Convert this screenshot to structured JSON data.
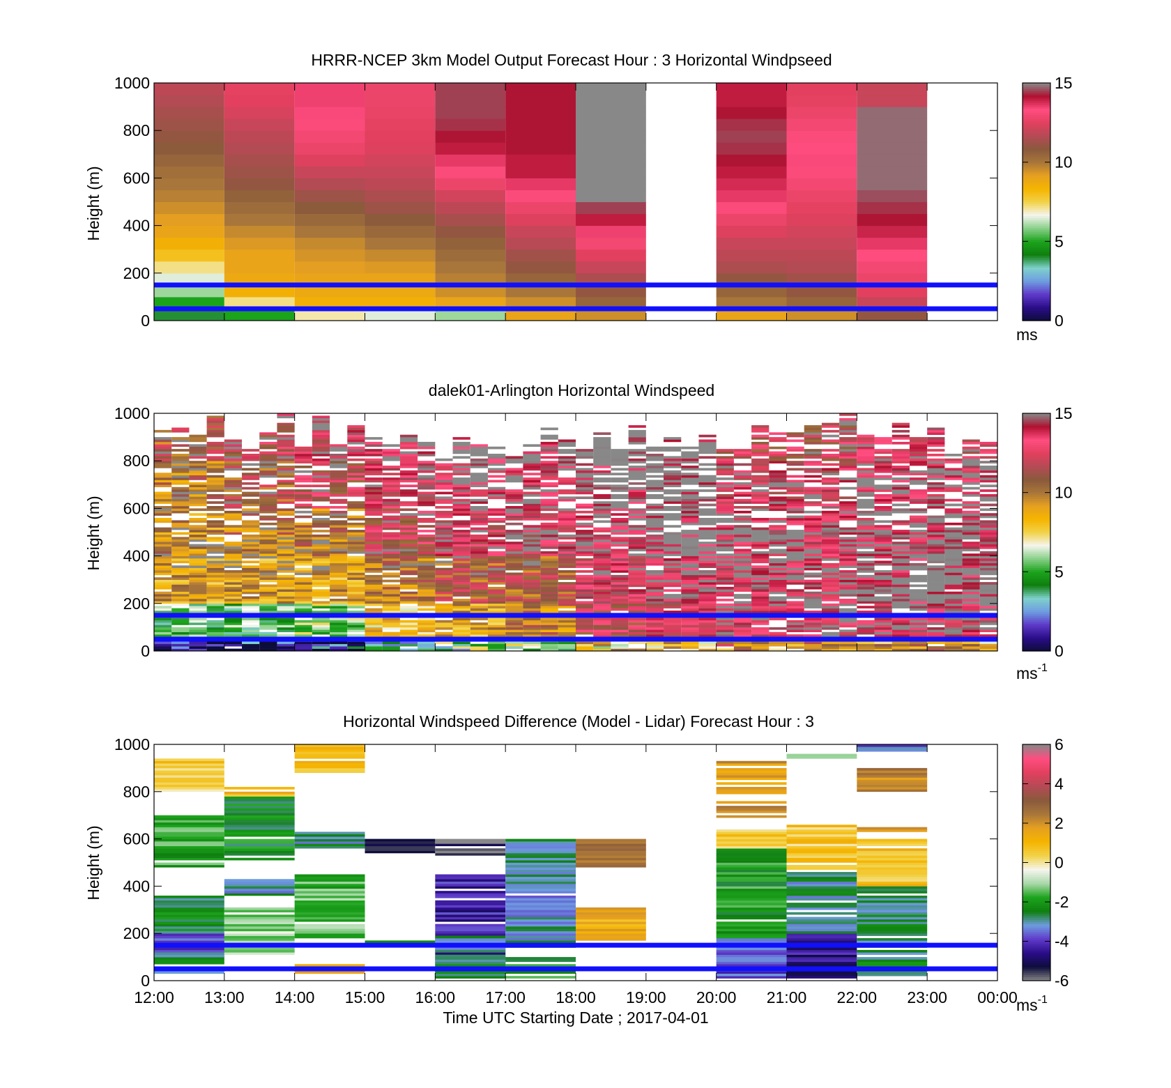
{
  "figure": {
    "xlabel": "Time UTC  Starting Date ; 2017-04-01"
  },
  "chart_data": [
    {
      "type": "heatmap",
      "title": "HRRR-NCEP 3km Model Output   Forecast Hour : 3 Horizontal Windpseed",
      "ylabel": "Height (m)",
      "ylim": [
        0,
        1000
      ],
      "yticks": [
        "0",
        "200",
        "400",
        "600",
        "800",
        "1000"
      ],
      "xticks": [
        "12:00",
        "13:00",
        "14:00",
        "15:00",
        "16:00",
        "17:00",
        "18:00",
        "19:00",
        "20:00",
        "21:00",
        "22:00",
        "23:00",
        "00:00"
      ],
      "show_xtick_labels": false,
      "colorbar": {
        "ticks": [
          "0",
          "5",
          "10",
          "15"
        ],
        "min": 0,
        "max": 15,
        "unit": "ms",
        "unit_sup": ""
      },
      "reference_lines_m": [
        50,
        150
      ],
      "row_height_m": 50,
      "columns": [
        {
          "hour": 12,
          "top": 1000,
          "values": [
            4,
            5,
            6,
            6.5,
            7.2,
            8,
            8.5,
            9,
            9.2,
            9.5,
            9.8,
            10,
            10.2,
            10.5,
            10.8,
            11,
            11.2,
            11.4,
            11.6,
            11.8
          ]
        },
        {
          "hour": 13,
          "top": 1000,
          "values": [
            5,
            7.2,
            8.5,
            8.8,
            9,
            9,
            9.3,
            9.6,
            10,
            10.3,
            10.6,
            11,
            11.2,
            11.4,
            11.6,
            11.8,
            12,
            12.3,
            12.5,
            12.6
          ]
        },
        {
          "hour": 14,
          "top": 1000,
          "values": [
            7,
            8.5,
            8.8,
            9,
            9.2,
            9.4,
            9.6,
            10,
            10.4,
            10.8,
            11.2,
            11.6,
            12,
            12.4,
            12.8,
            13,
            13.2,
            13.4,
            13.5,
            13.5
          ]
        },
        {
          "hour": 15,
          "top": 1000,
          "values": [
            6.5,
            8.5,
            8.8,
            9,
            9.3,
            9.6,
            10,
            10.4,
            10.8,
            11.2,
            11.5,
            11.8,
            12,
            12.2,
            12.4,
            12.5,
            12.6,
            12.7,
            12.8,
            12.8
          ]
        },
        {
          "hour": 16,
          "top": 1000,
          "values": [
            6,
            9,
            9.5,
            9.8,
            10,
            10.3,
            10.6,
            11,
            11.4,
            11.8,
            12.2,
            12.8,
            13.2,
            13.6,
            14,
            14.2,
            14.4,
            14.5,
            14.5,
            14.5
          ]
        },
        {
          "hour": 17,
          "top": 1000,
          "values": [
            9,
            9.5,
            10,
            10.5,
            11,
            11.3,
            11.7,
            12,
            12.4,
            12.8,
            13.2,
            13.6,
            14,
            14,
            14.2,
            14.2,
            14.2,
            14.2,
            14.2,
            14.2
          ]
        },
        {
          "hour": 18,
          "top": 1000,
          "values": [
            9.5,
            10.5,
            11,
            11.5,
            12,
            12.5,
            13,
            13.5,
            14,
            14.5,
            15,
            15,
            15.5,
            15.5,
            15.5,
            15.5,
            15.5,
            15.5,
            15.5,
            15.5
          ]
        },
        {
          "hour": 19,
          "top": 0,
          "values": []
        },
        {
          "hour": 20,
          "top": 1000,
          "values": [
            9,
            10,
            10.5,
            11,
            11.5,
            11.8,
            12,
            12.4,
            12.8,
            13.2,
            13.6,
            13.8,
            14,
            14.2,
            14.4,
            14.5,
            14.4,
            14.2,
            14,
            14
          ]
        },
        {
          "hour": 21,
          "top": 1000,
          "values": [
            9.5,
            10.5,
            11,
            11.3,
            11.6,
            11.8,
            12,
            12.2,
            12.4,
            12.6,
            12.8,
            13,
            13.2,
            13.4,
            13.3,
            13.2,
            13,
            12.8,
            12.6,
            12.5
          ]
        },
        {
          "hour": 22,
          "top": 1000,
          "values": [
            11,
            12,
            12.5,
            12.8,
            13,
            13.3,
            13.6,
            13.9,
            14.2,
            14.4,
            14.6,
            14.8,
            14.8,
            14.8,
            14.8,
            14.8,
            14.8,
            14.8,
            12,
            12
          ]
        },
        {
          "hour": 23,
          "top": 0,
          "values": []
        }
      ]
    },
    {
      "type": "heatmap",
      "title": "dalek01-Arlington  Horizontal Windspeed",
      "ylabel": "Height (m)",
      "ylim": [
        0,
        1000
      ],
      "yticks": [
        "0",
        "200",
        "400",
        "600",
        "800",
        "1000"
      ],
      "xticks": [
        "12:00",
        "13:00",
        "14:00",
        "15:00",
        "16:00",
        "17:00",
        "18:00",
        "19:00",
        "20:00",
        "21:00",
        "22:00",
        "23:00",
        "00:00"
      ],
      "show_xtick_labels": false,
      "colorbar": {
        "ticks": [
          "0",
          "5",
          "10",
          "15"
        ],
        "min": 0,
        "max": 15,
        "unit": "ms",
        "unit_sup": "-1"
      },
      "reference_lines_m": [
        50,
        150
      ],
      "row_height_m": 10,
      "noisy_profile": true,
      "profile_blocks": [
        {
          "start": 12.0,
          "end": 13.0,
          "means": [
            5,
            9,
            9.5,
            10,
            11,
            12
          ]
        },
        {
          "start": 13.0,
          "end": 14.0,
          "means": [
            5,
            9,
            10,
            11,
            12,
            12.5
          ]
        },
        {
          "start": 14.0,
          "end": 15.0,
          "means": [
            6,
            9,
            10,
            12,
            13,
            13
          ]
        },
        {
          "start": 15.0,
          "end": 16.0,
          "means": [
            8,
            10,
            12,
            13,
            14,
            14
          ]
        },
        {
          "start": 16.0,
          "end": 17.0,
          "means": [
            9,
            11,
            13,
            14,
            15,
            15
          ]
        },
        {
          "start": 17.0,
          "end": 18.0,
          "means": [
            10,
            11,
            13,
            14,
            15,
            15
          ]
        },
        {
          "start": 18.0,
          "end": 19.0,
          "means": [
            12,
            13,
            14,
            15,
            15.5,
            15.5
          ]
        },
        {
          "start": 19.0,
          "end": 20.0,
          "means": [
            13,
            14,
            15,
            15.5,
            15.5,
            15
          ]
        },
        {
          "start": 20.0,
          "end": 21.0,
          "means": [
            14,
            14,
            14,
            13,
            12,
            12
          ]
        },
        {
          "start": 21.0,
          "end": 22.0,
          "means": [
            14,
            14,
            14,
            13,
            12,
            12
          ]
        },
        {
          "start": 22.0,
          "end": 23.0,
          "means": [
            14,
            15,
            14,
            14,
            13,
            12
          ]
        },
        {
          "start": 23.0,
          "end": 24.0,
          "means": [
            14,
            15,
            15,
            14,
            13,
            12
          ]
        }
      ]
    },
    {
      "type": "heatmap",
      "title": "Horizontal Windspeed Difference (Model - Lidar) Forecast Hour : 3",
      "ylabel": "Height (m)",
      "ylim": [
        0,
        1000
      ],
      "yticks": [
        "0",
        "200",
        "400",
        "600",
        "800",
        "1000"
      ],
      "xticks": [
        "12:00",
        "13:00",
        "14:00",
        "15:00",
        "16:00",
        "17:00",
        "18:00",
        "19:00",
        "20:00",
        "21:00",
        "22:00",
        "23:00",
        "00:00"
      ],
      "show_xtick_labels": true,
      "colorbar": {
        "ticks": [
          "-6",
          "-4",
          "-2",
          "0",
          "2",
          "4",
          "6"
        ],
        "min": -6,
        "max": 6,
        "unit": "ms",
        "unit_sup": "-1"
      },
      "reference_lines_m": [
        50,
        150
      ],
      "segments": [
        {
          "start": 12.0,
          "end": 13.0,
          "y0": 30,
          "y1": 360,
          "val": -2.5
        },
        {
          "start": 12.0,
          "end": 13.0,
          "y0": 100,
          "y1": 210,
          "val": -3.6
        },
        {
          "start": 12.0,
          "end": 13.0,
          "y0": 480,
          "y1": 700,
          "val": -1.8
        },
        {
          "start": 12.0,
          "end": 13.0,
          "y0": 800,
          "y1": 940,
          "val": 0.5
        },
        {
          "start": 13.0,
          "end": 14.0,
          "y0": 110,
          "y1": 310,
          "val": -1.0
        },
        {
          "start": 13.0,
          "end": 14.0,
          "y0": 360,
          "y1": 430,
          "val": -3.0
        },
        {
          "start": 13.0,
          "end": 14.0,
          "y0": 510,
          "y1": 780,
          "val": -2.2
        },
        {
          "start": 13.0,
          "end": 14.0,
          "y0": 780,
          "y1": 830,
          "val": 1.0
        },
        {
          "start": 14.0,
          "end": 15.0,
          "y0": 30,
          "y1": 70,
          "val": 2.0
        },
        {
          "start": 14.0,
          "end": 15.0,
          "y0": 180,
          "y1": 450,
          "val": -1.5
        },
        {
          "start": 14.0,
          "end": 15.0,
          "y0": 560,
          "y1": 630,
          "val": -2.8
        },
        {
          "start": 14.0,
          "end": 15.0,
          "y0": 870,
          "y1": 1000,
          "val": 0.8
        },
        {
          "start": 15.0,
          "end": 16.0,
          "y0": 160,
          "y1": 180,
          "val": -2.8
        },
        {
          "start": 15.0,
          "end": 16.0,
          "y0": 540,
          "y1": 600,
          "val": -5.0
        },
        {
          "start": 16.0,
          "end": 17.0,
          "y0": 10,
          "y1": 450,
          "val": -4.3
        },
        {
          "start": 16.0,
          "end": 17.0,
          "y0": 10,
          "y1": 190,
          "val": -2.8
        },
        {
          "start": 16.0,
          "end": 17.0,
          "y0": 530,
          "y1": 600,
          "val": -5.7
        },
        {
          "start": 17.0,
          "end": 18.0,
          "y0": 140,
          "y1": 600,
          "val": -3.0
        },
        {
          "start": 17.0,
          "end": 18.0,
          "y0": 10,
          "y1": 100,
          "val": -2.0
        },
        {
          "start": 18.0,
          "end": 19.0,
          "y0": 170,
          "y1": 310,
          "val": 1.3
        },
        {
          "start": 18.0,
          "end": 19.0,
          "y0": 480,
          "y1": 600,
          "val": 2.5
        },
        {
          "start": 20.0,
          "end": 21.0,
          "y0": 10,
          "y1": 180,
          "val": -3.7
        },
        {
          "start": 20.0,
          "end": 21.0,
          "y0": 180,
          "y1": 560,
          "val": -2.0
        },
        {
          "start": 20.0,
          "end": 21.0,
          "y0": 560,
          "y1": 640,
          "val": 0.5
        },
        {
          "start": 20.0,
          "end": 21.0,
          "y0": 690,
          "y1": 760,
          "val": 2.2
        },
        {
          "start": 20.0,
          "end": 21.0,
          "y0": 790,
          "y1": 930,
          "val": 1.8
        },
        {
          "start": 21.0,
          "end": 22.0,
          "y0": 10,
          "y1": 200,
          "val": -4.6
        },
        {
          "start": 21.0,
          "end": 22.0,
          "y0": 200,
          "y1": 460,
          "val": -2.8
        },
        {
          "start": 21.0,
          "end": 22.0,
          "y0": 460,
          "y1": 660,
          "val": 0.6
        },
        {
          "start": 21.0,
          "end": 22.0,
          "y0": 940,
          "y1": 960,
          "val": -1.6
        },
        {
          "start": 22.0,
          "end": 23.0,
          "y0": 10,
          "y1": 400,
          "val": -2.6
        },
        {
          "start": 22.0,
          "end": 23.0,
          "y0": 400,
          "y1": 600,
          "val": 0.8
        },
        {
          "start": 22.0,
          "end": 23.0,
          "y0": 630,
          "y1": 650,
          "val": 2.0
        },
        {
          "start": 22.0,
          "end": 23.0,
          "y0": 800,
          "y1": 920,
          "val": 2.3
        },
        {
          "start": 22.0,
          "end": 23.0,
          "y0": 970,
          "y1": 1000,
          "val": -3.5
        }
      ]
    }
  ],
  "colors": {
    "speed_scale": [
      "#0d0d3b",
      "#2a0d88",
      "#5f39c9",
      "#6e9ce0",
      "#7fd0cc",
      "#0f7f0f",
      "#1ca31c",
      "#88cf88",
      "#f5f5ee",
      "#f2d24a",
      "#f5b400",
      "#e6a020",
      "#a8763a",
      "#8a5a3c",
      "#b54a55",
      "#e2405e",
      "#ff4d80",
      "#b01030",
      "#888888"
    ],
    "diff_scale": [
      "#888888",
      "#0d0d3b",
      "#2a0d88",
      "#5f39c9",
      "#6e9ce0",
      "#0f7f0f",
      "#1ca31c",
      "#a8d8a8",
      "#f5f5ee",
      "#f2d24a",
      "#f5b400",
      "#e6a020",
      "#a8763a",
      "#8a5a3c",
      "#b54a55",
      "#e2405e",
      "#ff4d80",
      "#888888"
    ],
    "reference_line": "#1010ff"
  }
}
